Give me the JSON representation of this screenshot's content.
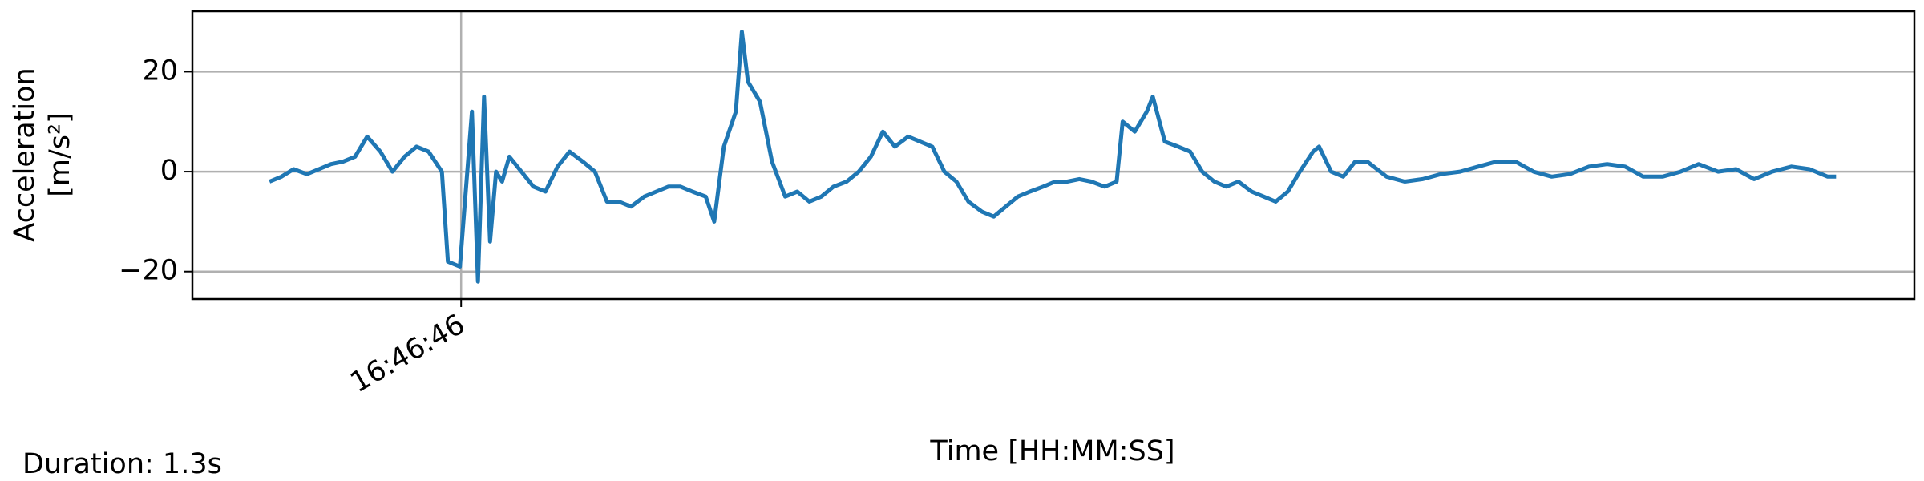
{
  "chart_data": {
    "type": "line",
    "x_label": "Time [HH:MM:SS]",
    "y_label": [
      "Acceleration",
      "[m/s²]"
    ],
    "annotation": "Duration: 1.3s",
    "xlim": [
      45.777,
      47.206
    ],
    "xticks": [
      {
        "value": 46.0,
        "label": "16:46:46"
      }
    ],
    "ylim": [
      -25.5,
      32.1
    ],
    "yticks": [
      {
        "value": -20,
        "label": "−20"
      },
      0,
      20
    ],
    "grid": true,
    "series": [
      {
        "name": "acceleration",
        "color": "#1f77b4",
        "x": [
          45.841,
          45.851,
          45.861,
          45.872,
          45.882,
          45.892,
          45.902,
          45.912,
          45.922,
          45.933,
          45.943,
          45.953,
          45.963,
          45.973,
          45.984,
          45.989,
          45.999,
          46.009,
          46.014,
          46.019,
          46.024,
          46.029,
          46.034,
          46.04,
          46.05,
          46.06,
          46.07,
          46.08,
          46.09,
          46.101,
          46.111,
          46.121,
          46.131,
          46.141,
          46.152,
          46.162,
          46.172,
          46.182,
          46.192,
          46.203,
          46.21,
          46.218,
          46.228,
          46.233,
          46.238,
          46.248,
          46.258,
          46.269,
          46.279,
          46.289,
          46.299,
          46.309,
          46.32,
          46.33,
          46.34,
          46.35,
          46.36,
          46.371,
          46.381,
          46.391,
          46.401,
          46.411,
          46.421,
          46.432,
          46.442,
          46.452,
          46.462,
          46.472,
          46.483,
          46.493,
          46.503,
          46.513,
          46.523,
          46.534,
          46.544,
          46.549,
          46.559,
          46.569,
          46.574,
          46.584,
          46.595,
          46.605,
          46.615,
          46.625,
          46.635,
          46.645,
          46.656,
          46.666,
          46.676,
          46.686,
          46.696,
          46.707,
          46.712,
          46.722,
          46.732,
          46.742,
          46.752,
          46.768,
          46.783,
          46.798,
          46.813,
          46.829,
          46.844,
          46.859,
          46.875,
          46.89,
          46.905,
          46.92,
          46.936,
          46.951,
          46.966,
          46.981,
          46.997,
          47.012,
          47.027,
          47.043,
          47.058,
          47.073,
          47.088,
          47.104,
          47.119,
          47.134,
          47.141
        ],
        "values": [
          -2,
          -1,
          0.5,
          -0.5,
          0.5,
          1.5,
          2,
          3,
          7,
          4,
          0,
          3,
          5,
          4,
          0,
          -18,
          -19,
          12,
          -22,
          15,
          -14,
          0,
          -2,
          3,
          0,
          -3,
          -4,
          1,
          4,
          2,
          0,
          -6,
          -6,
          -7,
          -5,
          -4,
          -3,
          -3,
          -4,
          -5,
          -10,
          5,
          12,
          28,
          18,
          14,
          2,
          -5,
          -4,
          -6,
          -5,
          -3,
          -2,
          0,
          3,
          8,
          5,
          7,
          6,
          5,
          0,
          -2,
          -6,
          -8,
          -9,
          -7,
          -5,
          -4,
          -3,
          -2,
          -2,
          -1.5,
          -2,
          -3,
          -2,
          10,
          8,
          12,
          15,
          6,
          5,
          4,
          0,
          -2,
          -3,
          -2,
          -4,
          -5,
          -6,
          -4,
          0,
          4,
          5,
          0,
          -1,
          2,
          2,
          -1,
          -2,
          -1.5,
          -0.5,
          0,
          1,
          2,
          2,
          0,
          -1,
          -0.5,
          1,
          1.5,
          1,
          -1,
          -1,
          0,
          1.5,
          0,
          0.5,
          -1.5,
          0,
          1,
          0.5,
          -1,
          -1
        ]
      }
    ]
  }
}
